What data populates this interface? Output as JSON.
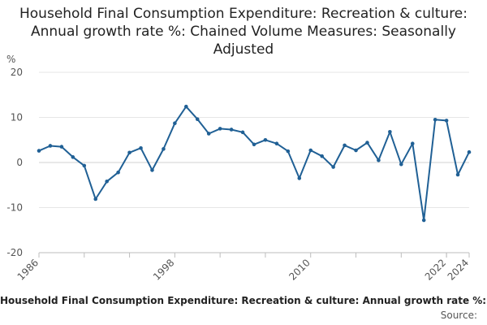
{
  "title": "Household Final Consumption Expenditure: Recreation & culture: Annual growth rate %: Chained Volume Measures: Seasonally Adjusted",
  "footer": {
    "series_name": "Household Final Consumption Expenditure: Recreation & culture: Annual growth rate %: Chained Volume Measures: Seasonally Adjusted",
    "source_label": "Source:"
  },
  "chart_data": {
    "type": "line",
    "title": "Household Final Consumption Expenditure: Recreation & culture: Annual growth rate %: Chained Volume Measures: Seasonally Adjusted",
    "ylabel": "%",
    "xlabel": "",
    "ylim": [
      -20,
      20
    ],
    "yticks": [
      20,
      10,
      0,
      -10,
      -20
    ],
    "xlim": [
      1986,
      2024
    ],
    "xticks_labeled": [
      "1986",
      "1998",
      "2010",
      "2022",
      "2024"
    ],
    "grid": true,
    "color": "#206095",
    "x": [
      1986,
      1987,
      1988,
      1989,
      1990,
      1991,
      1992,
      1993,
      1994,
      1995,
      1996,
      1997,
      1998,
      1999,
      2000,
      2001,
      2002,
      2003,
      2004,
      2005,
      2006,
      2007,
      2008,
      2009,
      2010,
      2011,
      2012,
      2013,
      2014,
      2015,
      2016,
      2017,
      2018,
      2019,
      2020,
      2021,
      2022,
      2023,
      2024
    ],
    "values": [
      2.6,
      3.7,
      3.5,
      1.2,
      -0.7,
      -8.1,
      -4.2,
      -2.2,
      2.2,
      3.2,
      -1.7,
      3.0,
      8.7,
      12.4,
      9.6,
      6.4,
      7.5,
      7.3,
      6.7,
      4.0,
      5.0,
      4.2,
      2.5,
      -3.5,
      2.7,
      1.4,
      -1.0,
      3.8,
      2.7,
      4.4,
      0.5,
      6.8,
      -0.4,
      4.2,
      -12.8,
      9.5,
      9.3,
      -2.7,
      2.3
    ]
  }
}
